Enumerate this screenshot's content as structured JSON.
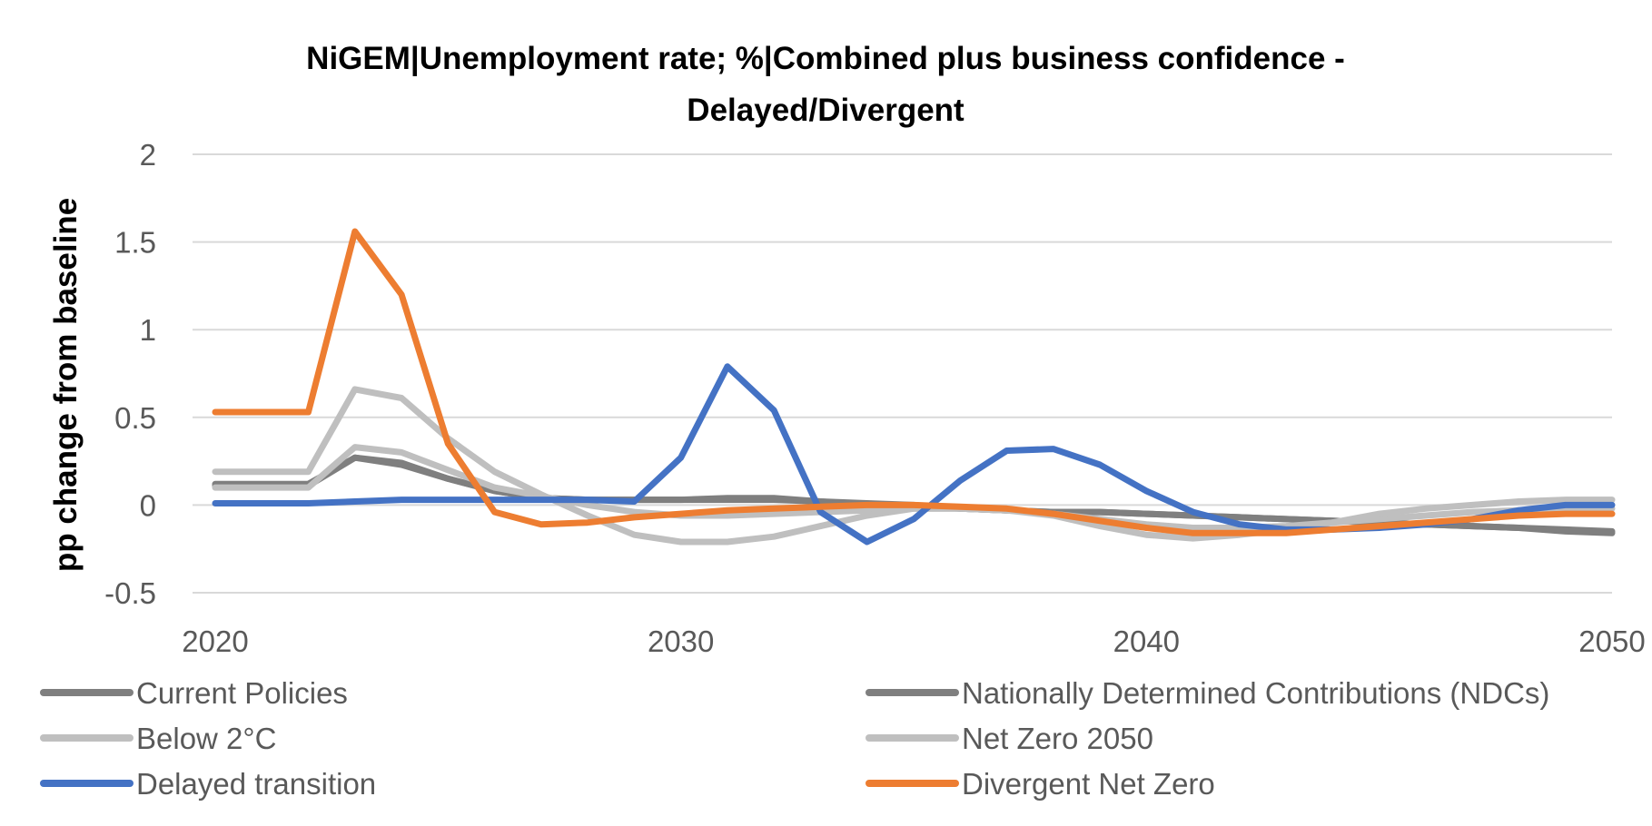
{
  "chart_data": {
    "type": "line",
    "title_lines": [
      "NiGEM|Unemployment rate; %|Combined plus business confidence -",
      "Delayed/Divergent"
    ],
    "ylabel": "pp change from baseline",
    "xlabel": "",
    "x": [
      2020,
      2021,
      2022,
      2023,
      2024,
      2025,
      2026,
      2027,
      2028,
      2029,
      2030,
      2031,
      2032,
      2033,
      2034,
      2035,
      2036,
      2037,
      2038,
      2039,
      2040,
      2041,
      2042,
      2043,
      2044,
      2045,
      2046,
      2047,
      2048,
      2049,
      2050
    ],
    "xlim": [
      2020,
      2050
    ],
    "ylim": [
      -0.5,
      2
    ],
    "x_ticks": [
      2020,
      2030,
      2040,
      2050
    ],
    "x_tick_labels": [
      "2020",
      "2030",
      "2040",
      "2050"
    ],
    "y_ticks": [
      2,
      1.5,
      1,
      0.5,
      0,
      -0.5
    ],
    "y_tick_labels": [
      "2",
      "1.5",
      "1",
      "0.5",
      "0",
      "-0.5"
    ],
    "grid": "horizontal",
    "legend_position": "bottom",
    "series": [
      {
        "name": "Current Policies",
        "color": "#7f7f7f",
        "values": [
          0.12,
          0.12,
          0.12,
          0.27,
          0.23,
          0.15,
          0.08,
          0.04,
          0.03,
          0.03,
          0.03,
          0.03,
          0.03,
          0.02,
          0.0,
          -0.01,
          -0.02,
          -0.03,
          -0.04,
          -0.04,
          -0.05,
          -0.06,
          -0.07,
          -0.08,
          -0.09,
          -0.1,
          -0.11,
          -0.12,
          -0.13,
          -0.14,
          -0.15
        ]
      },
      {
        "name": "Nationally Determined Contributions (NDCs)",
        "color": "#7f7f7f",
        "values": [
          0.11,
          0.11,
          0.11,
          0.27,
          0.24,
          0.15,
          0.08,
          0.04,
          0.03,
          0.03,
          0.03,
          0.04,
          0.04,
          0.02,
          0.01,
          0.0,
          -0.02,
          -0.03,
          -0.04,
          -0.04,
          -0.05,
          -0.06,
          -0.07,
          -0.08,
          -0.09,
          -0.1,
          -0.11,
          -0.12,
          -0.13,
          -0.15,
          -0.16
        ]
      },
      {
        "name": "Below 2°C",
        "color": "#bfbfbf",
        "values": [
          0.1,
          0.1,
          0.1,
          0.33,
          0.3,
          0.2,
          0.1,
          0.05,
          0.0,
          -0.04,
          -0.06,
          -0.06,
          -0.05,
          -0.04,
          -0.03,
          -0.02,
          -0.02,
          -0.03,
          -0.05,
          -0.08,
          -0.11,
          -0.13,
          -0.13,
          -0.12,
          -0.1,
          -0.08,
          -0.06,
          -0.04,
          -0.03,
          -0.02,
          -0.02
        ]
      },
      {
        "name": "Net Zero 2050",
        "color": "#bfbfbf",
        "values": [
          0.19,
          0.19,
          0.19,
          0.66,
          0.61,
          0.38,
          0.19,
          0.06,
          -0.06,
          -0.17,
          -0.21,
          -0.21,
          -0.18,
          -0.12,
          -0.06,
          -0.02,
          -0.02,
          -0.03,
          -0.06,
          -0.12,
          -0.17,
          -0.19,
          -0.17,
          -0.14,
          -0.1,
          -0.05,
          -0.02,
          0.0,
          0.02,
          0.03,
          0.03
        ]
      },
      {
        "name": "Delayed transition",
        "color": "#4472c4",
        "values": [
          0.01,
          0.01,
          0.01,
          0.02,
          0.03,
          0.03,
          0.03,
          0.03,
          0.03,
          0.02,
          0.27,
          0.79,
          0.54,
          -0.04,
          -0.21,
          -0.08,
          0.14,
          0.31,
          0.32,
          0.23,
          0.08,
          -0.04,
          -0.11,
          -0.14,
          -0.14,
          -0.13,
          -0.11,
          -0.08,
          -0.03,
          0.0,
          0.0
        ]
      },
      {
        "name": "Divergent Net Zero",
        "color": "#ed7d31",
        "values": [
          0.53,
          0.53,
          0.53,
          1.56,
          1.2,
          0.35,
          -0.04,
          -0.11,
          -0.1,
          -0.07,
          -0.05,
          -0.03,
          -0.02,
          -0.01,
          0.0,
          0.0,
          -0.01,
          -0.02,
          -0.05,
          -0.09,
          -0.13,
          -0.16,
          -0.16,
          -0.16,
          -0.14,
          -0.12,
          -0.1,
          -0.08,
          -0.06,
          -0.05,
          -0.05
        ]
      }
    ]
  }
}
